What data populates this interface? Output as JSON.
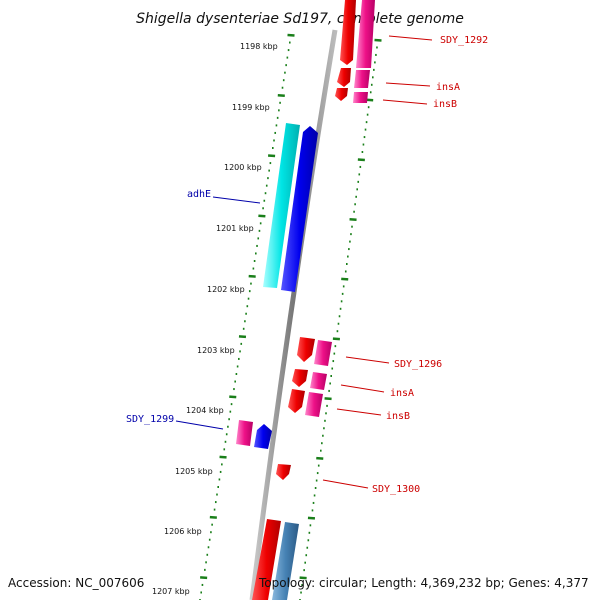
{
  "title": "Shigella dysenteriae Sd197, complete genome",
  "footer": {
    "accession": "Accession: NC_007606",
    "topology": "Topology: circular; Length: 4,369,232 bp; Genes: 4,377"
  },
  "kbp_labels": [
    "1198 kbp",
    "1199 kbp",
    "1200 kbp",
    "1201 kbp",
    "1202 kbp",
    "1203 kbp",
    "1204 kbp",
    "1205 kbp",
    "1206 kbp",
    "1207 kbp"
  ],
  "colors": {
    "forward_label": "#cc0000",
    "reverse_label": "#0000aa",
    "tick": "#1a7f1a",
    "backbone": "#888888",
    "red": "#ee0000",
    "pink": "#ee1188",
    "cyan": "#00e5e5",
    "blue": "#0000ee",
    "steel": "#4682b4"
  },
  "gene_labels": {
    "sdy_1292": "SDY_1292",
    "insA_1": "insA",
    "insB_1": "insB",
    "adhE": "adhE",
    "sdy_1296": "SDY_1296",
    "insA_2": "insA",
    "insB_2": "insB",
    "sdy_1299": "SDY_1299",
    "sdy_1300": "SDY_1300"
  }
}
